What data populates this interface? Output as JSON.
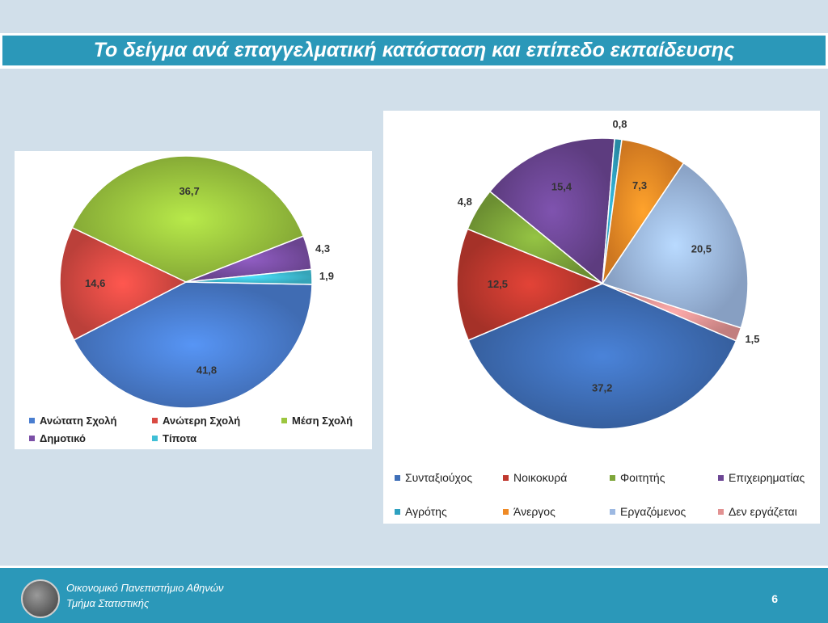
{
  "slide": {
    "title": "Το δείγμα ανά επαγγελματική κατάσταση και επίπεδο εκπαίδευσης",
    "footer": {
      "line1": "Οικονομικό Πανεπιστήμιο Αθηνών",
      "line2": "Τμήμα Στατιστικής",
      "page_number": "6",
      "logo_icon": "university-seal-icon"
    }
  },
  "chart_data": [
    {
      "type": "pie",
      "title": "",
      "categories": [
        "Ανώτατη Σχολή",
        "Ανώτερη Σχολή",
        "Μέση Σχολή",
        "Δημοτικό",
        "Τίποτα"
      ],
      "values": [
        41.8,
        14.6,
        36.7,
        4.3,
        1.9
      ],
      "labels": [
        "41,8",
        "14,6",
        "36,7",
        "4,3",
        "1,9"
      ],
      "colors": [
        "#4a7ed0",
        "#d94a43",
        "#9cc63f",
        "#7b4fa6",
        "#3fbfd6"
      ],
      "legend_position": "bottom"
    },
    {
      "type": "pie",
      "title": "",
      "categories": [
        "Συνταξιούχος",
        "Νοικοκυρά",
        "Φοιτητής",
        "Επιχειρηματίας",
        "Αγρότης",
        "Άνεργος",
        "Εργαζόμενος",
        "Δεν εργάζεται"
      ],
      "values": [
        37.2,
        12.5,
        4.8,
        15.4,
        0.8,
        7.3,
        20.5,
        1.5
      ],
      "labels": [
        "37,2",
        "12,5",
        "4,8",
        "15,4",
        "0,8",
        "7,3",
        "20,5",
        "1,5"
      ],
      "colors": [
        "#3f6fb8",
        "#c0392f",
        "#7ea63a",
        "#6c4694",
        "#2ea1c0",
        "#ef8a25",
        "#9db9e2",
        "#e29292"
      ],
      "legend_position": "bottom"
    }
  ]
}
